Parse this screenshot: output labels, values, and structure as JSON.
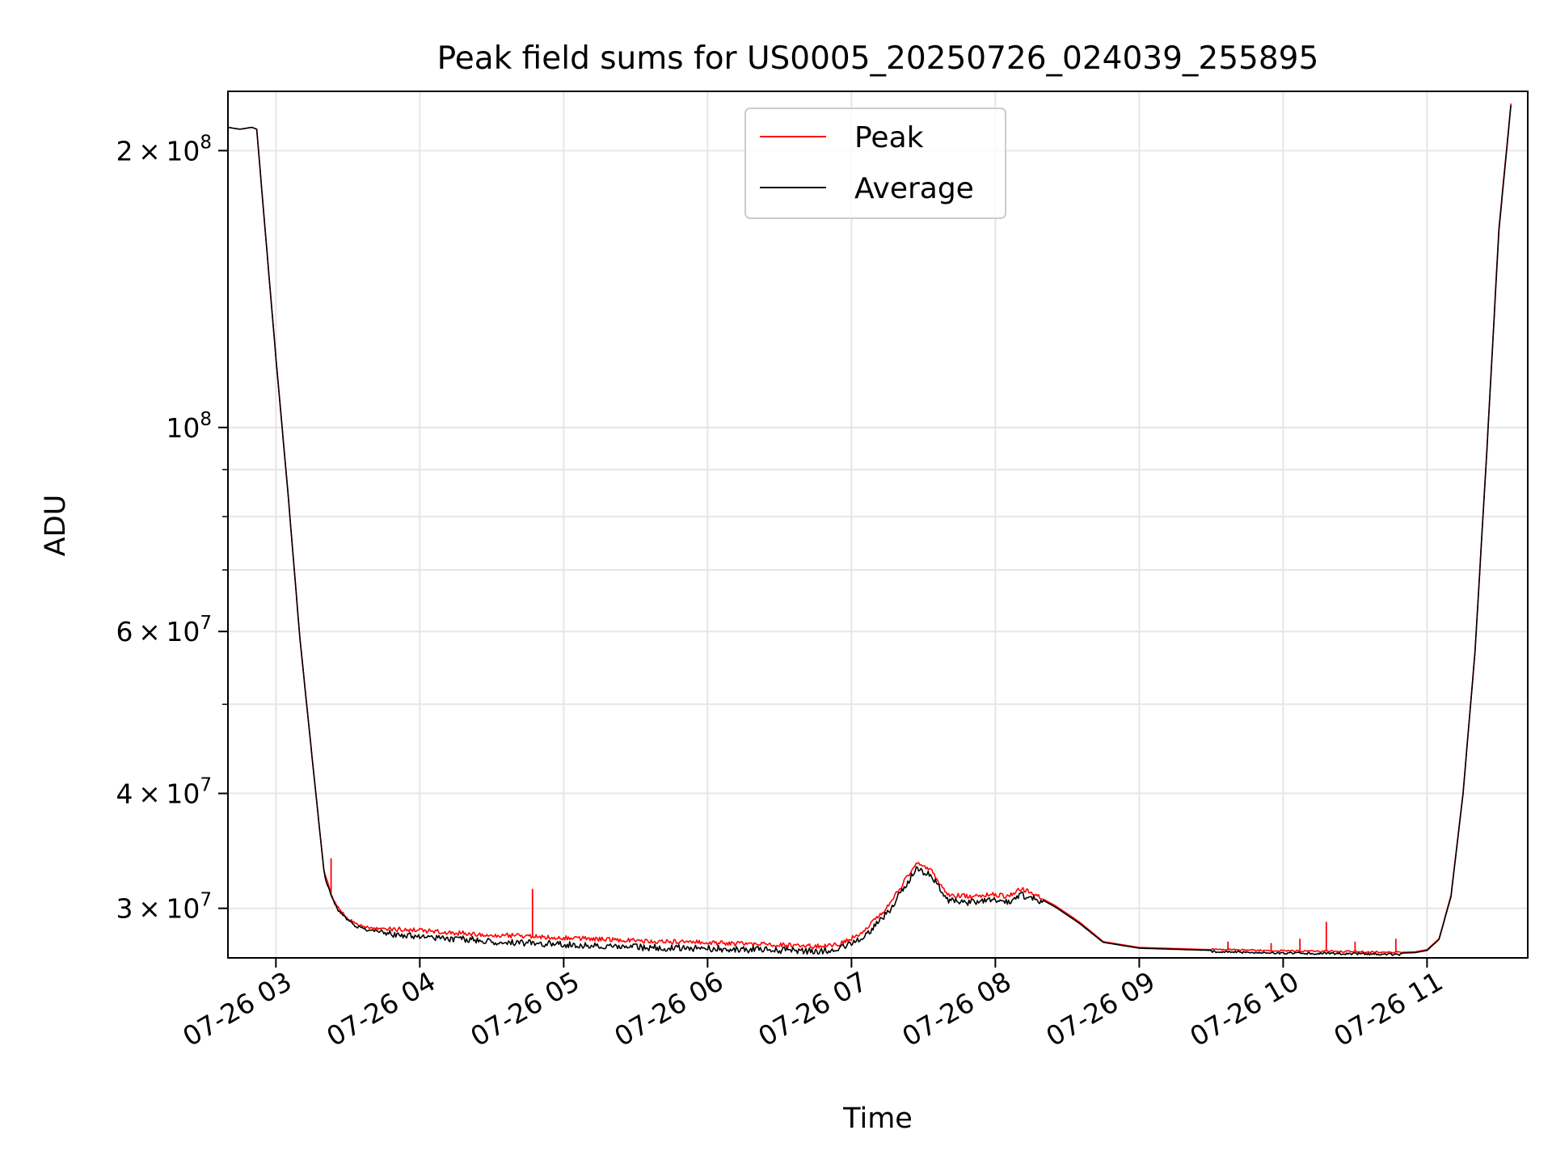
{
  "chart_data": {
    "type": "line",
    "title": "Peak field sums for US0005_20250726_024039_255895",
    "xlabel": "Time",
    "ylabel": "ADU",
    "yscale": "log",
    "xlim": [
      "2025-07-26 02:40",
      "2025-07-26 11:42"
    ],
    "ylim": [
      26500000,
      232000000
    ],
    "grid": true,
    "legend_position": "top-center",
    "x_ticks": [
      "07-26 03",
      "07-26 04",
      "07-26 05",
      "07-26 06",
      "07-26 07",
      "07-26 08",
      "07-26 09",
      "07-26 10",
      "07-26 11"
    ],
    "y_tick_labels": [
      {
        "value": 200000000,
        "mantissa": "2",
        "exp": "8"
      },
      {
        "value": 100000000,
        "mantissa": "",
        "exp": "8"
      },
      {
        "value": 60000000,
        "mantissa": "6",
        "exp": "7"
      },
      {
        "value": 40000000,
        "mantissa": "4",
        "exp": "7"
      },
      {
        "value": 30000000,
        "mantissa": "3",
        "exp": "7"
      }
    ],
    "series": [
      {
        "name": "Peak",
        "color": "#ff0000",
        "x": [
          "2025-07-26 02:40",
          "2025-07-26 02:45",
          "2025-07-26 02:50",
          "2025-07-26 02:52",
          "2025-07-26 02:55",
          "2025-07-26 03:00",
          "2025-07-26 03:05",
          "2025-07-26 03:10",
          "2025-07-26 03:15",
          "2025-07-26 03:18",
          "2025-07-26 03:20",
          "2025-07-26 03:23",
          "2025-07-26 03:26",
          "2025-07-26 03:30",
          "2025-07-26 03:35",
          "2025-07-26 03:40",
          "2025-07-26 04:00",
          "2025-07-26 04:30",
          "2025-07-26 04:45",
          "2025-07-26 05:00",
          "2025-07-26 05:30",
          "2025-07-26 06:00",
          "2025-07-26 06:30",
          "2025-07-26 06:45",
          "2025-07-26 06:55",
          "2025-07-26 07:05",
          "2025-07-26 07:15",
          "2025-07-26 07:22",
          "2025-07-26 07:27",
          "2025-07-26 07:33",
          "2025-07-26 07:40",
          "2025-07-26 07:50",
          "2025-07-26 08:00",
          "2025-07-26 08:05",
          "2025-07-26 08:10",
          "2025-07-26 08:15",
          "2025-07-26 08:25",
          "2025-07-26 08:35",
          "2025-07-26 08:45",
          "2025-07-26 09:00",
          "2025-07-26 09:30",
          "2025-07-26 10:00",
          "2025-07-26 10:30",
          "2025-07-26 10:45",
          "2025-07-26 10:55",
          "2025-07-26 11:00",
          "2025-07-26 11:05",
          "2025-07-26 11:10",
          "2025-07-26 11:15",
          "2025-07-26 11:20",
          "2025-07-26 11:25",
          "2025-07-26 11:30",
          "2025-07-26 11:35"
        ],
        "values": [
          212000000,
          211000000,
          212000000,
          211000000,
          170000000,
          119000000,
          85000000,
          59000000,
          44000000,
          37000000,
          33000000,
          31000000,
          30000000,
          29200000,
          28700000,
          28500000,
          28300000,
          28000000,
          27900000,
          27800000,
          27600000,
          27450000,
          27300000,
          27200000,
          27350000,
          28200000,
          30000000,
          32000000,
          33500000,
          33000000,
          31000000,
          30800000,
          31000000,
          30800000,
          31400000,
          31200000,
          30200000,
          29000000,
          27600000,
          27200000,
          27050000,
          26950000,
          26900000,
          26850000,
          26900000,
          27050000,
          27800000,
          31000000,
          40000000,
          57000000,
          95000000,
          165000000,
          225000000
        ],
        "spikes": [
          {
            "x": "2025-07-26 04:47",
            "y": 31500000
          },
          {
            "x": "2025-07-26 03:23",
            "y": 34000000
          },
          {
            "x": "2025-07-26 09:37",
            "y": 27600000
          },
          {
            "x": "2025-07-26 09:55",
            "y": 27500000
          },
          {
            "x": "2025-07-26 10:07",
            "y": 27800000
          },
          {
            "x": "2025-07-26 10:18",
            "y": 29000000
          },
          {
            "x": "2025-07-26 10:30",
            "y": 27600000
          },
          {
            "x": "2025-07-26 10:47",
            "y": 27800000
          }
        ]
      },
      {
        "name": "Average",
        "color": "#000000",
        "x": [
          "2025-07-26 02:40",
          "2025-07-26 02:45",
          "2025-07-26 02:50",
          "2025-07-26 02:52",
          "2025-07-26 02:55",
          "2025-07-26 03:00",
          "2025-07-26 03:05",
          "2025-07-26 03:10",
          "2025-07-26 03:15",
          "2025-07-26 03:18",
          "2025-07-26 03:20",
          "2025-07-26 03:23",
          "2025-07-26 03:26",
          "2025-07-26 03:30",
          "2025-07-26 03:35",
          "2025-07-26 03:40",
          "2025-07-26 04:00",
          "2025-07-26 04:30",
          "2025-07-26 04:45",
          "2025-07-26 05:00",
          "2025-07-26 05:30",
          "2025-07-26 06:00",
          "2025-07-26 06:30",
          "2025-07-26 06:45",
          "2025-07-26 06:55",
          "2025-07-26 07:05",
          "2025-07-26 07:15",
          "2025-07-26 07:22",
          "2025-07-26 07:27",
          "2025-07-26 07:33",
          "2025-07-26 07:40",
          "2025-07-26 07:50",
          "2025-07-26 08:00",
          "2025-07-26 08:05",
          "2025-07-26 08:10",
          "2025-07-26 08:15",
          "2025-07-26 08:25",
          "2025-07-26 08:35",
          "2025-07-26 08:45",
          "2025-07-26 09:00",
          "2025-07-26 09:30",
          "2025-07-26 10:00",
          "2025-07-26 10:30",
          "2025-07-26 10:45",
          "2025-07-26 10:55",
          "2025-07-26 11:00",
          "2025-07-26 11:05",
          "2025-07-26 11:10",
          "2025-07-26 11:15",
          "2025-07-26 11:20",
          "2025-07-26 11:25",
          "2025-07-26 11:30",
          "2025-07-26 11:35"
        ],
        "values": [
          212000000,
          211000000,
          212000000,
          211000000,
          170000000,
          119000000,
          85000000,
          59000000,
          44000000,
          37000000,
          33000000,
          31000000,
          30000000,
          29200000,
          28700000,
          28500000,
          28200000,
          27850000,
          27750000,
          27650000,
          27450000,
          27350000,
          27250000,
          27150000,
          27300000,
          28100000,
          29900000,
          31900000,
          33400000,
          32900000,
          30900000,
          30700000,
          30900000,
          30700000,
          31300000,
          31100000,
          30100000,
          28900000,
          27550000,
          27150000,
          27000000,
          26900000,
          26850000,
          26800000,
          26850000,
          27000000,
          27750000,
          30900000,
          39900000,
          56900000,
          94800000,
          164000000,
          224000000
        ]
      }
    ]
  }
}
